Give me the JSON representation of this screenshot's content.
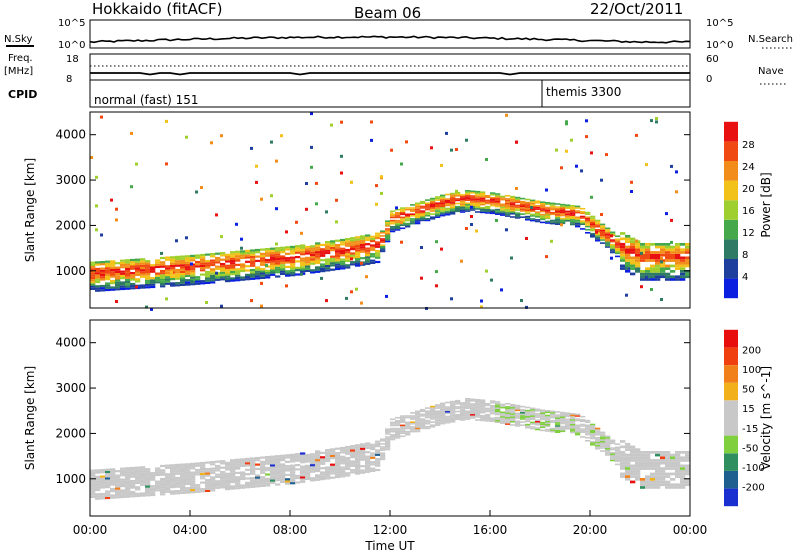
{
  "header": {
    "station": "Hokkaido (fitACF)",
    "beam": "Beam 06",
    "date": "22/Oct/2011"
  },
  "noise_panel": {
    "left_label": "N.Sky",
    "right_label": "N.Search",
    "ticks_left": [
      "10^5",
      "10^0"
    ],
    "ticks_right": [
      "10^5",
      "10^0"
    ]
  },
  "freq_panel": {
    "left_label_1": "Freq.",
    "left_label_2": "[MHz]",
    "ticks_left": [
      "18",
      "8"
    ],
    "ticks_right": [
      "60",
      "0"
    ],
    "right_label": "Nave"
  },
  "cpid_panel": {
    "label": "CPID",
    "segments": [
      {
        "text": "normal (fast) 151",
        "start_hour": 0
      },
      {
        "text": "themis 3300",
        "start_hour": 18
      }
    ]
  },
  "colors": {
    "power_scale": [
      "#0a1fe0",
      "#1f3f9f",
      "#2e7a64",
      "#45a84a",
      "#9fcf2f",
      "#f2c21a",
      "#f28c1a",
      "#f04a12",
      "#e81010"
    ],
    "velocity_scale": [
      "#1a2fd0",
      "#1f5f8f",
      "#2f8f5f",
      "#7fcf3f",
      "#c8c8c8",
      "#c8c8c8",
      "#f2b01a",
      "#f2801a",
      "#f04010",
      "#e80e0e"
    ]
  },
  "chart_data": [
    {
      "type": "heatmap",
      "name": "power",
      "ylabel": "Slant Range [km]",
      "xlabel": "Time UT",
      "x_ticks": [
        "00:00",
        "04:00",
        "08:00",
        "12:00",
        "16:00",
        "20:00",
        "00:00"
      ],
      "xlim_hours": [
        0,
        24
      ],
      "y_ticks": [
        1000,
        2000,
        3000,
        4000
      ],
      "ylim": [
        180,
        4500
      ],
      "colorbar": {
        "label": "Power [dB]",
        "ticks": [
          4,
          8,
          12,
          16,
          20,
          24,
          28
        ],
        "range": [
          0,
          30
        ]
      },
      "features": [
        {
          "desc": "main echo band",
          "points": [
            [
              0,
              950
            ],
            [
              4,
              1100
            ],
            [
              8,
              1300
            ],
            [
              10,
              1450
            ],
            [
              11.5,
              1600
            ],
            [
              12,
              2150
            ],
            [
              14,
              2500
            ],
            [
              15,
              2600
            ],
            [
              16,
              2550
            ],
            [
              18,
              2350
            ],
            [
              19.5,
              2250
            ],
            [
              21,
              1600
            ],
            [
              22,
              1300
            ],
            [
              24,
              1300
            ]
          ]
        }
      ]
    },
    {
      "type": "heatmap",
      "name": "velocity",
      "ylabel": "Slant Range [km]",
      "xlabel": "Time UT",
      "x_ticks": [
        "00:00",
        "04:00",
        "08:00",
        "12:00",
        "16:00",
        "20:00",
        "00:00"
      ],
      "xlim_hours": [
        0,
        24
      ],
      "y_ticks": [
        1000,
        2000,
        3000,
        4000
      ],
      "ylim": [
        180,
        4500
      ],
      "colorbar": {
        "label": "Velocity [m s^-1]",
        "ticks": [
          200,
          100,
          50,
          15,
          -15,
          -50,
          -100,
          -200
        ]
      }
    }
  ]
}
